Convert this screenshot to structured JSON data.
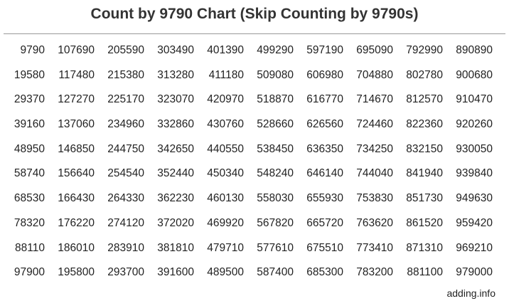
{
  "title": "Count by 9790 Chart (Skip Counting by 9790s)",
  "rows": [
    [
      "9790",
      "107690",
      "205590",
      "303490",
      "401390",
      "499290",
      "597190",
      "695090",
      "792990",
      "890890"
    ],
    [
      "19580",
      "117480",
      "215380",
      "313280",
      "411180",
      "509080",
      "606980",
      "704880",
      "802780",
      "900680"
    ],
    [
      "29370",
      "127270",
      "225170",
      "323070",
      "420970",
      "518870",
      "616770",
      "714670",
      "812570",
      "910470"
    ],
    [
      "39160",
      "137060",
      "234960",
      "332860",
      "430760",
      "528660",
      "626560",
      "724460",
      "822360",
      "920260"
    ],
    [
      "48950",
      "146850",
      "244750",
      "342650",
      "440550",
      "538450",
      "636350",
      "734250",
      "832150",
      "930050"
    ],
    [
      "58740",
      "156640",
      "254540",
      "352440",
      "450340",
      "548240",
      "646140",
      "744040",
      "841940",
      "939840"
    ],
    [
      "68530",
      "166430",
      "264330",
      "362230",
      "460130",
      "558030",
      "655930",
      "753830",
      "851730",
      "949630"
    ],
    [
      "78320",
      "176220",
      "274120",
      "372020",
      "469920",
      "567820",
      "665720",
      "763620",
      "861520",
      "959420"
    ],
    [
      "88110",
      "186010",
      "283910",
      "381810",
      "479710",
      "577610",
      "675510",
      "773410",
      "871310",
      "969210"
    ],
    [
      "97900",
      "195800",
      "293700",
      "391600",
      "489500",
      "587400",
      "685300",
      "783200",
      "881100",
      "979000"
    ]
  ],
  "footer": "adding.info"
}
